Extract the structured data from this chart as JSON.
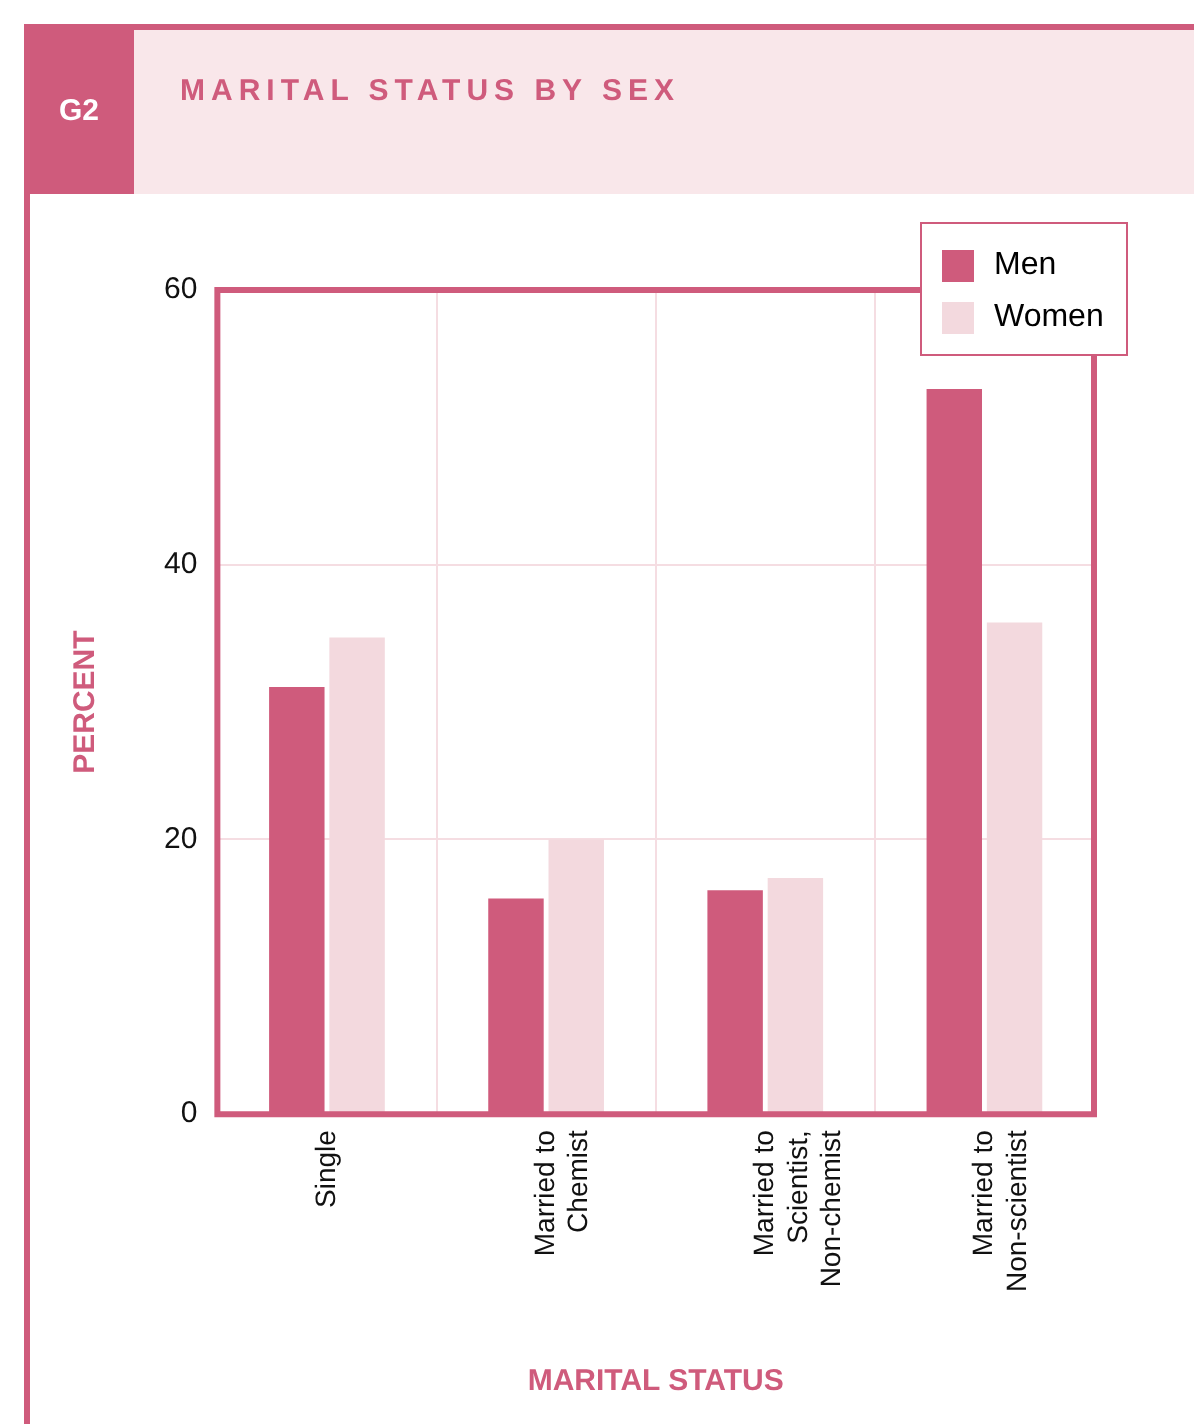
{
  "chart_data": {
    "type": "bar",
    "title": "MARITAL STATUS BY SEX",
    "xlabel": "MARITAL STATUS",
    "ylabel": "PERCENT",
    "annotations": [
      "G2"
    ],
    "categories": [
      "Single",
      "Married to Chemist",
      "Married to Scientist, Non-chemist",
      "Married to Non-scientist"
    ],
    "series": [
      {
        "name": "Men",
        "color": "#cf5b7c",
        "values": [
          31.1,
          15.7,
          16.3,
          52.8
        ]
      },
      {
        "name": "Women",
        "color": "#f3d9de",
        "values": [
          34.7,
          20.0,
          17.2,
          35.8
        ]
      }
    ],
    "ylim": [
      0,
      60
    ],
    "yticks": [
      0,
      20,
      40,
      60
    ],
    "grid": true,
    "legend": "top right"
  }
}
